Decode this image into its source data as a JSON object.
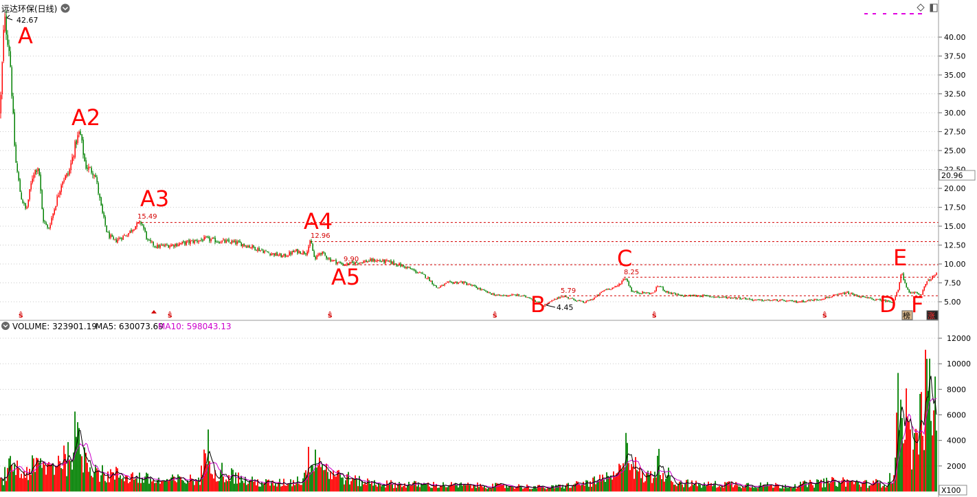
{
  "title": "远达环保(日线)",
  "colors": {
    "up": "#ff0000",
    "down": "#008000",
    "ma5": "#000000",
    "ma10": "#cc00cc",
    "grid": "#c8c8c8",
    "ref": "#d40000",
    "annot": "#ff0000"
  },
  "price_axis": {
    "ticks": [
      "5.00",
      "7.50",
      "10.00",
      "12.50",
      "15.00",
      "17.50",
      "20.00",
      "22.50",
      "25.00",
      "27.50",
      "30.00",
      "32.50",
      "35.00",
      "37.50",
      "40.00"
    ],
    "current": "20.96"
  },
  "volume_axis": {
    "ticks": [
      "2000",
      "4000",
      "6000",
      "8000",
      "10000",
      "12000"
    ],
    "unit": "X100"
  },
  "volume_header": {
    "label": "VOLUME: 323901.19",
    "ma5": "MA5: 630073.69",
    "ma10": "MA10: 598043.13"
  },
  "price_labels": {
    "high": "42.67",
    "a3": "15.49",
    "a4": "12.96",
    "a5": "9.90",
    "b": "4.45",
    "b2": "5.79",
    "c": "8.25"
  },
  "annotations": [
    "A",
    "A2",
    "A3",
    "A4",
    "A5",
    "B",
    "C",
    "D",
    "E",
    "F"
  ],
  "badges": {
    "left": "榜",
    "right": "涨"
  },
  "chart_data": {
    "type": "candlestick",
    "title": "远达环保(日线)",
    "ylim": [
      3.5,
      44
    ],
    "reference_lines": [
      15.49,
      12.96,
      9.9,
      8.25,
      5.79
    ],
    "swing_points": [
      {
        "label": "A",
        "value": 42.67
      },
      {
        "label": "A2",
        "value": 27.5
      },
      {
        "label": "A3",
        "value": 15.49
      },
      {
        "label": "A4",
        "value": 12.96
      },
      {
        "label": "A5",
        "value": 9.9
      },
      {
        "label": "B",
        "value": 4.45
      },
      {
        "label": "C",
        "value": 8.25
      },
      {
        "label": "D",
        "value": 5.0
      },
      {
        "label": "E",
        "value": 9.2
      },
      {
        "label": "F",
        "value": 5.9
      }
    ],
    "price_path": [
      [
        0,
        30
      ],
      [
        6,
        42.67
      ],
      [
        14,
        38
      ],
      [
        22,
        24
      ],
      [
        30,
        19
      ],
      [
        38,
        17
      ],
      [
        48,
        22
      ],
      [
        56,
        23
      ],
      [
        62,
        16
      ],
      [
        70,
        14.5
      ],
      [
        78,
        17
      ],
      [
        90,
        21
      ],
      [
        100,
        22
      ],
      [
        110,
        26
      ],
      [
        116,
        27.5
      ],
      [
        124,
        23
      ],
      [
        138,
        22
      ],
      [
        148,
        17
      ],
      [
        156,
        14
      ],
      [
        166,
        13
      ],
      [
        176,
        13.5
      ],
      [
        186,
        14
      ],
      [
        196,
        15
      ],
      [
        206,
        15.49
      ],
      [
        215,
        13
      ],
      [
        228,
        12.3
      ],
      [
        250,
        12.5
      ],
      [
        270,
        12.8
      ],
      [
        300,
        13.3
      ],
      [
        320,
        13
      ],
      [
        345,
        12.8
      ],
      [
        365,
        12.3
      ],
      [
        390,
        11.5
      ],
      [
        412,
        11
      ],
      [
        430,
        11.7
      ],
      [
        445,
        11.5
      ],
      [
        452,
        12.96
      ],
      [
        458,
        10.5
      ],
      [
        466,
        11.6
      ],
      [
        480,
        10.6
      ],
      [
        500,
        9.9
      ],
      [
        520,
        10.2
      ],
      [
        545,
        10.5
      ],
      [
        570,
        10.2
      ],
      [
        590,
        9.6
      ],
      [
        608,
        8.9
      ],
      [
        622,
        8.2
      ],
      [
        636,
        6.8
      ],
      [
        652,
        7.5
      ],
      [
        672,
        7.6
      ],
      [
        690,
        7.0
      ],
      [
        710,
        6.2
      ],
      [
        725,
        5.8
      ],
      [
        750,
        5.9
      ],
      [
        770,
        5.6
      ],
      [
        790,
        4.45
      ],
      [
        803,
        5.1
      ],
      [
        818,
        5.79
      ],
      [
        835,
        5.3
      ],
      [
        850,
        4.9
      ],
      [
        865,
        5.5
      ],
      [
        880,
        6.6
      ],
      [
        898,
        7.0
      ],
      [
        910,
        8.25
      ],
      [
        920,
        6.3
      ],
      [
        935,
        6.2
      ],
      [
        950,
        6.1
      ],
      [
        958,
        7.2
      ],
      [
        970,
        6.3
      ],
      [
        990,
        5.8
      ],
      [
        1020,
        5.8
      ],
      [
        1050,
        5.6
      ],
      [
        1080,
        5.5
      ],
      [
        1100,
        5.2
      ],
      [
        1130,
        5.2
      ],
      [
        1160,
        5.0
      ],
      [
        1190,
        5.3
      ],
      [
        1215,
        5.8
      ],
      [
        1232,
        6.2
      ],
      [
        1255,
        5.6
      ],
      [
        1280,
        5.2
      ],
      [
        1300,
        5.0
      ],
      [
        1308,
        6.8
      ],
      [
        1312,
        9.2
      ],
      [
        1318,
        7.0
      ],
      [
        1324,
        6.0
      ],
      [
        1332,
        6.3
      ],
      [
        1340,
        5.9
      ],
      [
        1348,
        7.5
      ],
      [
        1356,
        8.2
      ],
      [
        1362,
        8.6
      ]
    ],
    "volume_path": [
      [
        0,
        700
      ],
      [
        10,
        1500
      ],
      [
        20,
        2200
      ],
      [
        30,
        1300
      ],
      [
        45,
        1800
      ],
      [
        60,
        2000
      ],
      [
        75,
        1900
      ],
      [
        90,
        2800
      ],
      [
        100,
        2500
      ],
      [
        108,
        4300
      ],
      [
        118,
        3000
      ],
      [
        130,
        2400
      ],
      [
        150,
        1300
      ],
      [
        170,
        1300
      ],
      [
        200,
        1100
      ],
      [
        230,
        800
      ],
      [
        260,
        900
      ],
      [
        290,
        900
      ],
      [
        304,
        3500
      ],
      [
        312,
        1800
      ],
      [
        330,
        1400
      ],
      [
        360,
        800
      ],
      [
        400,
        600
      ],
      [
        440,
        900
      ],
      [
        455,
        3300
      ],
      [
        465,
        2400
      ],
      [
        480,
        1500
      ],
      [
        520,
        800
      ],
      [
        560,
        600
      ],
      [
        600,
        550
      ],
      [
        650,
        500
      ],
      [
        700,
        450
      ],
      [
        760,
        400
      ],
      [
        800,
        300
      ],
      [
        860,
        700
      ],
      [
        900,
        1200
      ],
      [
        910,
        4300
      ],
      [
        920,
        2200
      ],
      [
        935,
        1100
      ],
      [
        950,
        1300
      ],
      [
        958,
        2300
      ],
      [
        965,
        1800
      ],
      [
        980,
        800
      ],
      [
        1020,
        500
      ],
      [
        1060,
        600
      ],
      [
        1100,
        500
      ],
      [
        1150,
        450
      ],
      [
        1200,
        700
      ],
      [
        1230,
        800
      ],
      [
        1260,
        600
      ],
      [
        1290,
        700
      ],
      [
        1300,
        1200
      ],
      [
        1306,
        5800
      ],
      [
        1312,
        8000
      ],
      [
        1318,
        6200
      ],
      [
        1325,
        3500
      ],
      [
        1335,
        4200
      ],
      [
        1345,
        6800
      ],
      [
        1352,
        8200
      ],
      [
        1358,
        6200
      ],
      [
        1363,
        6800
      ]
    ],
    "volume_ylim": [
      0,
      12500
    ]
  }
}
